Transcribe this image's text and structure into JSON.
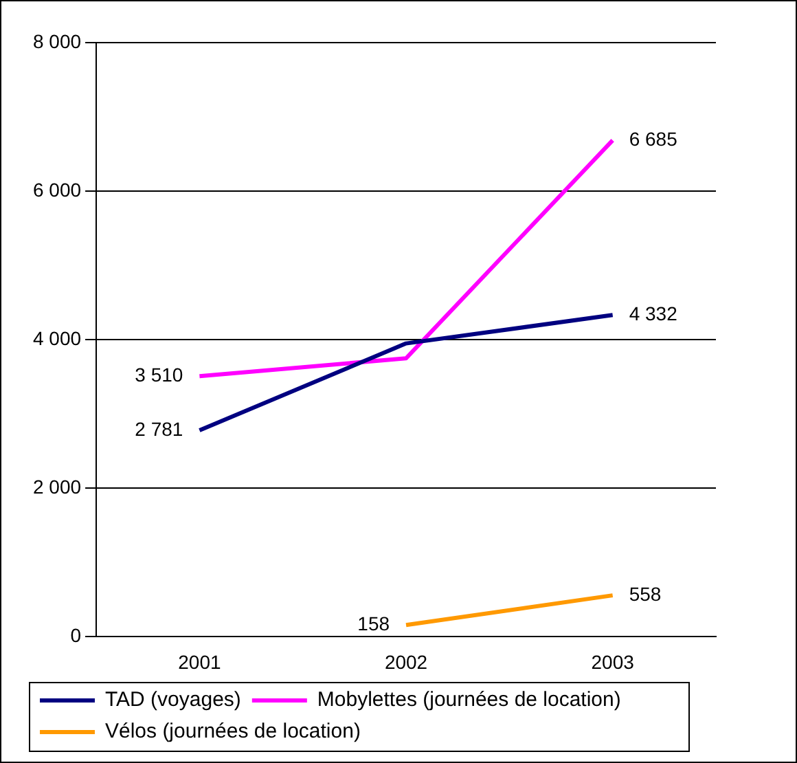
{
  "chart_data": {
    "type": "line",
    "categories": [
      "2001",
      "2002",
      "2003"
    ],
    "series": [
      {
        "name": "TAD (voyages)",
        "color": "#000080",
        "values": [
          2781,
          3950,
          4332
        ],
        "value_labels": [
          "2 781",
          null,
          "4 332"
        ]
      },
      {
        "name": "Mobylettes (journées de location)",
        "color": "#ff00ff",
        "values": [
          3510,
          3750,
          6685
        ],
        "value_labels": [
          "3 510",
          null,
          "6 685"
        ]
      },
      {
        "name": "Vélos (journées de location)",
        "color": "#ff9900",
        "values": [
          null,
          158,
          558
        ],
        "value_labels": [
          null,
          "158",
          "558"
        ]
      }
    ],
    "ylim": [
      0,
      8000
    ],
    "yticks": [
      {
        "value": 0,
        "label": "0"
      },
      {
        "value": 2000,
        "label": "2 000"
      },
      {
        "value": 4000,
        "label": "4 000"
      },
      {
        "value": 6000,
        "label": "6 000"
      },
      {
        "value": 8000,
        "label": "8 000"
      }
    ],
    "grid": "y",
    "legend": "bottom",
    "marker": "none",
    "line_style": "solid"
  }
}
